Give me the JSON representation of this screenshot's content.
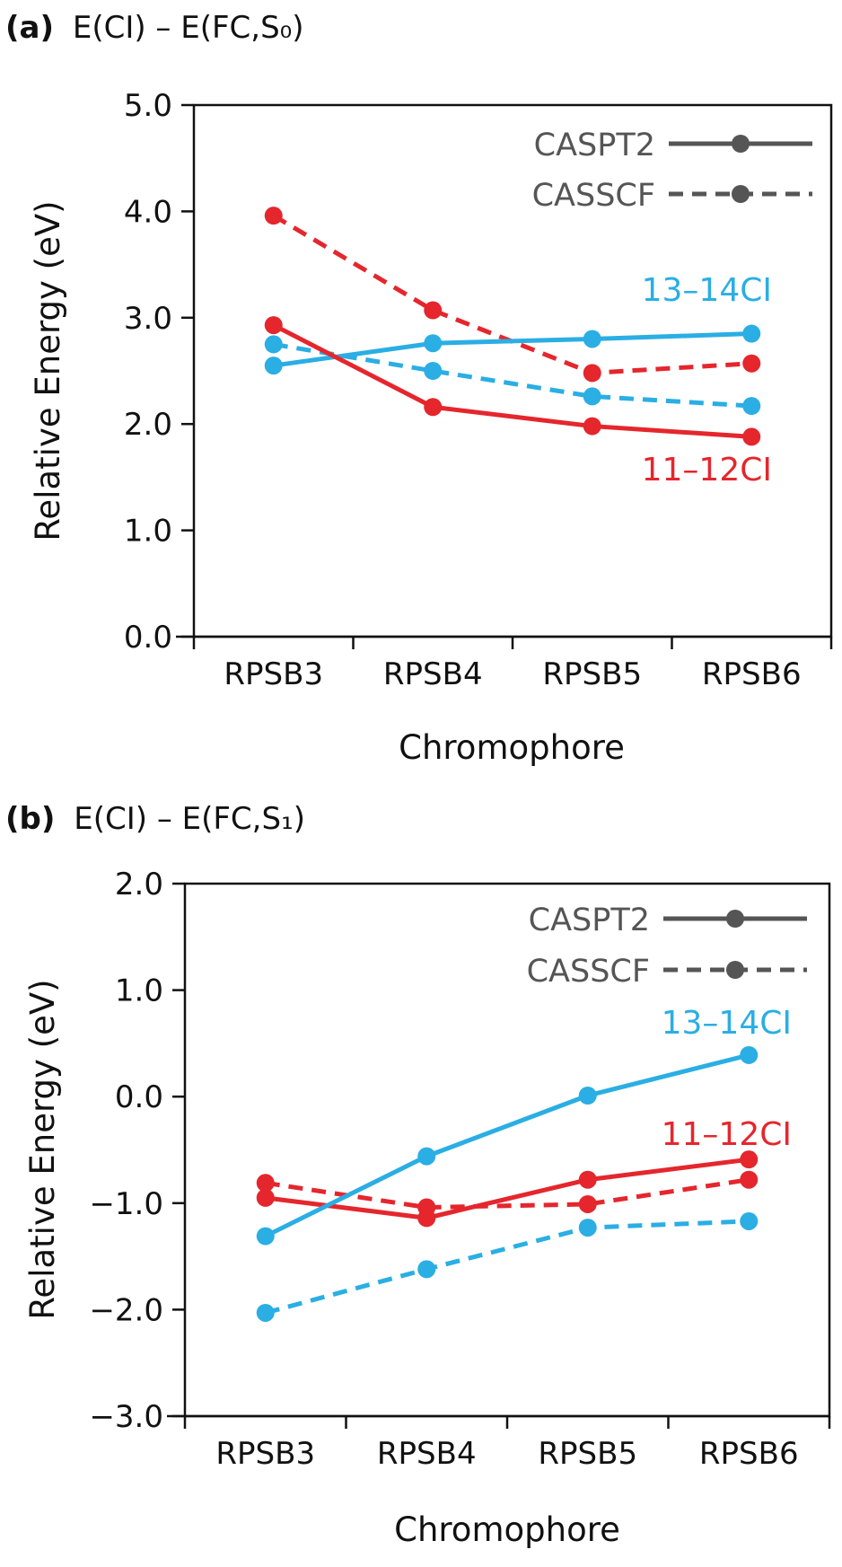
{
  "chart_data": [
    {
      "type": "line",
      "panel_label": "(a)",
      "title": "E(CI) – E(FC,S₀)",
      "xlabel": "Chromophore",
      "ylabel": "Relative Energy (eV)",
      "categories": [
        "RPSB3",
        "RPSB4",
        "RPSB5",
        "RPSB6"
      ],
      "ylim": [
        0.0,
        5.0
      ],
      "yticks": [
        "0.0",
        "1.0",
        "2.0",
        "3.0",
        "4.0",
        "5.0"
      ],
      "legend": [
        {
          "label": "CASPT2",
          "style": "solid"
        },
        {
          "label": "CASSCF",
          "style": "dashed"
        }
      ],
      "legend_position": "top-right",
      "series_labels": [
        {
          "text": "13–14CI",
          "color": "#2aaee4"
        },
        {
          "text": "11–12CI",
          "color": "#e5262d"
        }
      ],
      "series": [
        {
          "name": "11–12CI CASSCF",
          "color": "#e5262d",
          "style": "dashed",
          "values": [
            3.96,
            3.07,
            2.48,
            2.57
          ]
        },
        {
          "name": "13–14CI CASSCF",
          "color": "#2aaee4",
          "style": "dashed",
          "values": [
            2.75,
            2.5,
            2.26,
            2.17
          ]
        },
        {
          "name": "13–14CI CASPT2",
          "color": "#2aaee4",
          "style": "solid",
          "values": [
            2.55,
            2.76,
            2.8,
            2.85
          ]
        },
        {
          "name": "11–12CI CASPT2",
          "color": "#e5262d",
          "style": "solid",
          "values": [
            2.93,
            2.16,
            1.98,
            1.88
          ]
        }
      ]
    },
    {
      "type": "line",
      "panel_label": "(b)",
      "title": "E(CI) – E(FC,S₁)",
      "xlabel": "Chromophore",
      "ylabel": "Relative Energy (eV)",
      "categories": [
        "RPSB3",
        "RPSB4",
        "RPSB5",
        "RPSB6"
      ],
      "ylim": [
        -3.0,
        2.0
      ],
      "yticks": [
        "−3.0",
        "−2.0",
        "−1.0",
        "0.0",
        "1.0",
        "2.0"
      ],
      "legend": [
        {
          "label": "CASPT2",
          "style": "solid"
        },
        {
          "label": "CASSCF",
          "style": "dashed"
        }
      ],
      "legend_position": "top-right",
      "series_labels": [
        {
          "text": "13–14CI",
          "color": "#2aaee4"
        },
        {
          "text": "11–12CI",
          "color": "#e5262d"
        }
      ],
      "series": [
        {
          "name": "13–14CI CASSCF",
          "color": "#2aaee4",
          "style": "dashed",
          "values": [
            -2.03,
            -1.62,
            -1.23,
            -1.17
          ]
        },
        {
          "name": "11–12CI CASSCF",
          "color": "#e5262d",
          "style": "dashed",
          "values": [
            -0.81,
            -1.04,
            -1.01,
            -0.78
          ]
        },
        {
          "name": "11–12CI CASPT2",
          "color": "#e5262d",
          "style": "solid",
          "values": [
            -0.95,
            -1.14,
            -0.78,
            -0.59
          ]
        },
        {
          "name": "13–14CI CASPT2",
          "color": "#2aaee4",
          "style": "solid",
          "values": [
            -1.31,
            -0.56,
            0.01,
            0.39
          ]
        }
      ]
    }
  ]
}
